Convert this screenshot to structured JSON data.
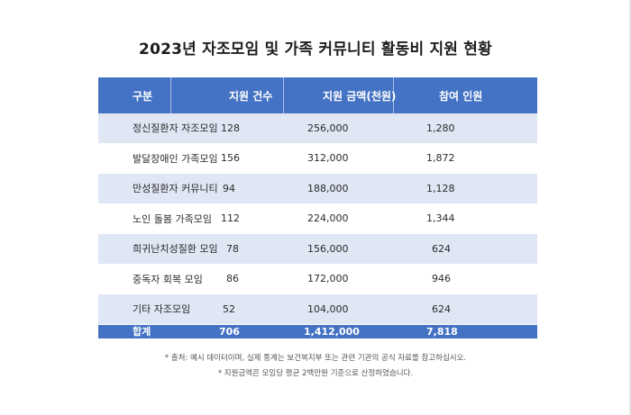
{
  "title": "2023년 자조모임 및 가족 커뮤니티 활동비 지원 현황",
  "table": {
    "headers": [
      "구분",
      "지원 건수",
      "지원 금액(천원)",
      "참여 인원"
    ],
    "rows": [
      [
        "정신질환자 자조모임",
        "128",
        "256,000",
        "1,280"
      ],
      [
        "발달장애인 가족모임",
        "156",
        "312,000",
        "1,872"
      ],
      [
        "만성질환자 커뮤니티",
        "94",
        "188,000",
        "1,128"
      ],
      [
        "노인 돌봄 가족모임",
        "112",
        "224,000",
        "1,344"
      ],
      [
        "희귀난치성질환 모임",
        "78",
        "156,000",
        "624"
      ],
      [
        "중독자 회복 모임",
        "86",
        "172,000",
        "946"
      ],
      [
        "기타 자조모임",
        "52",
        "104,000",
        "624"
      ]
    ],
    "total": [
      "합계",
      "706",
      "1,412,000",
      "7,818"
    ]
  },
  "notes": [
    "* 출처: 예시 데이터이며, 실제 통계는 보건복지부 또는 관련 기관의 공식 자료를 참고하십시오.",
    "* 지원금액은 모임당 평균 2백만원 기준으로 산정하였습니다."
  ],
  "colors": {
    "header_bg": "#4472c4",
    "alt_row_bg": "#dfe6f4"
  }
}
